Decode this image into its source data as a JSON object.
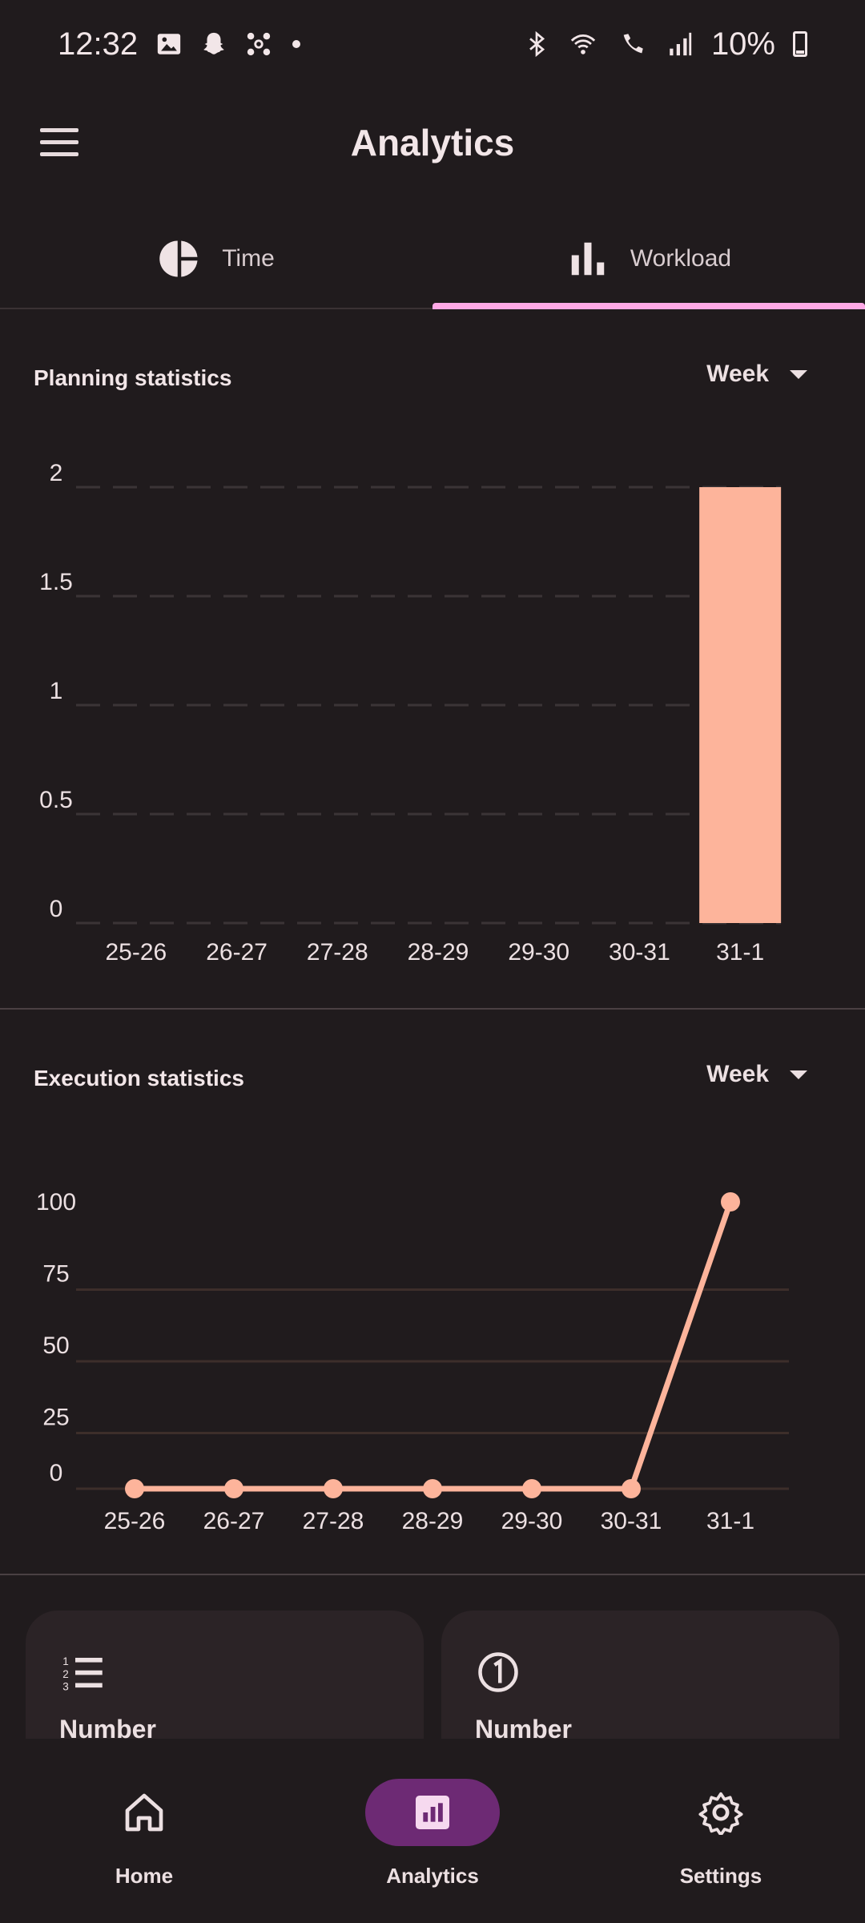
{
  "status_bar": {
    "time": "12:32",
    "battery": "10%",
    "left_icons": [
      "gallery-icon",
      "snapchat-icon",
      "pinwheel-icon",
      "dot-icon"
    ],
    "right_icons": [
      "bluetooth-icon",
      "wifi-icon",
      "wifi-calling-icon",
      "signal-icon",
      "battery-charging-icon"
    ]
  },
  "app_bar": {
    "title": "Analytics"
  },
  "tabs": [
    {
      "label": "Time",
      "icon": "pie-chart-icon",
      "active": false
    },
    {
      "label": "Workload",
      "icon": "bar-chart-icon",
      "active": true
    }
  ],
  "planning": {
    "title": "Planning statistics",
    "dropdown": "Week"
  },
  "execution": {
    "title": "Execution statistics",
    "dropdown": "Week"
  },
  "chart_data": [
    {
      "type": "bar",
      "title": "Planning statistics",
      "categories": [
        "25-26",
        "26-27",
        "27-28",
        "28-29",
        "29-30",
        "30-31",
        "31-1"
      ],
      "values": [
        0,
        0,
        0,
        0,
        0,
        0,
        2
      ],
      "yticks": [
        "0",
        "0.5",
        "1",
        "1.5",
        "2"
      ],
      "ylim": [
        0,
        2
      ],
      "grid": true,
      "color": "#fdb49b"
    },
    {
      "type": "line",
      "title": "Execution statistics",
      "categories": [
        "25-26",
        "26-27",
        "27-28",
        "28-29",
        "29-30",
        "30-31",
        "31-1"
      ],
      "values": [
        0,
        0,
        0,
        0,
        0,
        0,
        100
      ],
      "yticks": [
        "0",
        "25",
        "50",
        "75",
        "100"
      ],
      "ylim": [
        0,
        100
      ],
      "grid": true,
      "color": "#fdb49b"
    }
  ],
  "cards": [
    {
      "label": "Number",
      "icon": "numbered-list-icon"
    },
    {
      "label": "Number",
      "icon": "number-one-circle-icon"
    }
  ],
  "bottom_nav": [
    {
      "label": "Home",
      "icon": "home-icon",
      "active": false
    },
    {
      "label": "Analytics",
      "icon": "analytics-icon",
      "active": true
    },
    {
      "label": "Settings",
      "icon": "gear-icon",
      "active": false
    }
  ],
  "colors": {
    "background": "#201b1d",
    "accent": "#fdb49b",
    "tab_indicator": "#ffa9e6",
    "nav_active": "#6d2a74"
  }
}
